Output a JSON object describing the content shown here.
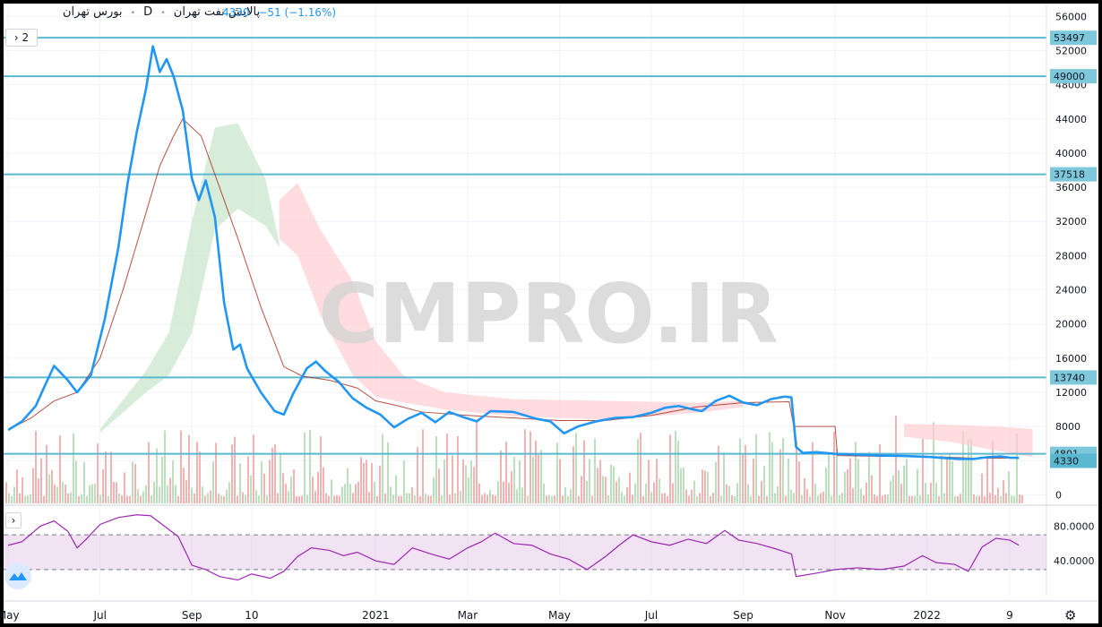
{
  "header": {
    "symbol": "پالایش نفت تهران",
    "interval": "D",
    "exchange": "بورس تهران",
    "last": "4330",
    "change": "−51 (−1.16%)",
    "sep": "•"
  },
  "controls": {
    "collapse_label": "› 2",
    "expand_label": "›",
    "settings_icon": "gear-icon",
    "logo_icon": "tradingview-logo-icon"
  },
  "watermark": "CMPRO.IR",
  "colors": {
    "price": "#2196f3",
    "base": "#a52714",
    "level": "#5ab9d0",
    "rsi": "#9c27b0",
    "cloud_up": "#c8e6c9",
    "cloud_down": "#ffcdd2",
    "vol_up": "#a5d6a7",
    "vol_down": "#ef9a9a"
  },
  "chart_data": {
    "type": "line",
    "price_axis": {
      "ticks": [
        56000,
        52000,
        48000,
        44000,
        40000,
        36000,
        32000,
        28000,
        24000,
        20000,
        16000,
        12000,
        8000,
        4000,
        0
      ],
      "range": [
        -1000,
        57500
      ]
    },
    "time_axis": {
      "labels": [
        {
          "t": 0.0,
          "label": "May"
        },
        {
          "t": 2.0,
          "label": "Jul"
        },
        {
          "t": 4.0,
          "label": "Sep"
        },
        {
          "t": 5.3,
          "label": "10"
        },
        {
          "t": 8.0,
          "label": "2021"
        },
        {
          "t": 10.0,
          "label": "Mar"
        },
        {
          "t": 12.0,
          "label": "May"
        },
        {
          "t": 14.0,
          "label": "Jul"
        },
        {
          "t": 16.0,
          "label": "Sep"
        },
        {
          "t": 18.0,
          "label": "Nov"
        },
        {
          "t": 20.0,
          "label": "2022"
        },
        {
          "t": 21.8,
          "label": "9"
        }
      ],
      "range": [
        -0.1,
        22.6
      ]
    },
    "horizontal_levels": [
      {
        "value": 53497,
        "label": "53497"
      },
      {
        "value": 49000,
        "label": "49000"
      },
      {
        "value": 37518,
        "label": "37518"
      },
      {
        "value": 13740,
        "label": "13740"
      },
      {
        "value": 4801,
        "label": "4801"
      }
    ],
    "current_price": {
      "value": 4330,
      "label": "4330"
    },
    "price_series": {
      "name": "",
      "points": [
        [
          0.0,
          7600
        ],
        [
          0.3,
          8600
        ],
        [
          0.6,
          10400
        ],
        [
          0.8,
          12800
        ],
        [
          1.0,
          15100
        ],
        [
          1.3,
          13400
        ],
        [
          1.5,
          12000
        ],
        [
          1.8,
          14000
        ],
        [
          2.1,
          20500
        ],
        [
          2.4,
          29000
        ],
        [
          2.6,
          36500
        ],
        [
          2.8,
          42500
        ],
        [
          3.0,
          47500
        ],
        [
          3.15,
          52500
        ],
        [
          3.3,
          49500
        ],
        [
          3.45,
          51000
        ],
        [
          3.6,
          49000
        ],
        [
          3.8,
          45000
        ],
        [
          4.0,
          37000
        ],
        [
          4.15,
          34500
        ],
        [
          4.3,
          36800
        ],
        [
          4.5,
          32500
        ],
        [
          4.7,
          22500
        ],
        [
          4.9,
          17000
        ],
        [
          5.05,
          17600
        ],
        [
          5.2,
          14800
        ],
        [
          5.5,
          12000
        ],
        [
          5.8,
          9800
        ],
        [
          6.0,
          9400
        ],
        [
          6.2,
          11800
        ],
        [
          6.5,
          14800
        ],
        [
          6.7,
          15600
        ],
        [
          6.9,
          14500
        ],
        [
          7.2,
          13200
        ],
        [
          7.5,
          11300
        ],
        [
          7.8,
          10200
        ],
        [
          8.1,
          9400
        ],
        [
          8.4,
          7900
        ],
        [
          8.7,
          8900
        ],
        [
          9.0,
          9600
        ],
        [
          9.3,
          8500
        ],
        [
          9.6,
          9700
        ],
        [
          9.9,
          9100
        ],
        [
          10.2,
          8600
        ],
        [
          10.5,
          9800
        ],
        [
          11.0,
          9700
        ],
        [
          11.5,
          8900
        ],
        [
          11.8,
          8600
        ],
        [
          12.1,
          7200
        ],
        [
          12.4,
          8000
        ],
        [
          12.8,
          8600
        ],
        [
          13.2,
          9000
        ],
        [
          13.6,
          9100
        ],
        [
          14.0,
          9600
        ],
        [
          14.3,
          10200
        ],
        [
          14.6,
          10400
        ],
        [
          14.9,
          10000
        ],
        [
          15.1,
          9800
        ],
        [
          15.4,
          11000
        ],
        [
          15.7,
          11600
        ],
        [
          16.0,
          10800
        ],
        [
          16.3,
          10500
        ],
        [
          16.6,
          11200
        ],
        [
          16.9,
          11500
        ],
        [
          17.05,
          11400
        ],
        [
          17.15,
          5600
        ],
        [
          17.3,
          4900
        ],
        [
          17.6,
          5000
        ],
        [
          18.0,
          4800
        ],
        [
          18.5,
          4700
        ],
        [
          19.0,
          4600
        ],
        [
          19.5,
          4550
        ],
        [
          20.0,
          4450
        ],
        [
          20.4,
          4300
        ],
        [
          20.7,
          4200
        ],
        [
          21.0,
          4200
        ],
        [
          21.3,
          4400
        ],
        [
          21.6,
          4500
        ],
        [
          21.8,
          4350
        ],
        [
          22.0,
          4330
        ]
      ]
    },
    "base_line": {
      "name": "",
      "points": [
        [
          0.0,
          7600
        ],
        [
          0.5,
          9000
        ],
        [
          1.0,
          11000
        ],
        [
          1.5,
          12000
        ],
        [
          2.0,
          16000
        ],
        [
          2.5,
          24000
        ],
        [
          3.0,
          33000
        ],
        [
          3.3,
          38500
        ],
        [
          3.6,
          42000
        ],
        [
          3.8,
          44000
        ],
        [
          4.2,
          42000
        ],
        [
          4.6,
          36000
        ],
        [
          5.0,
          30000
        ],
        [
          5.5,
          22000
        ],
        [
          6.0,
          15000
        ],
        [
          6.4,
          13900
        ],
        [
          7.0,
          13400
        ],
        [
          7.6,
          12500
        ],
        [
          8.0,
          11000
        ],
        [
          8.5,
          10400
        ],
        [
          9.0,
          9700
        ],
        [
          10.0,
          9300
        ],
        [
          11.0,
          9000
        ],
        [
          12.0,
          8700
        ],
        [
          13.0,
          8700
        ],
        [
          14.0,
          9300
        ],
        [
          15.0,
          10300
        ],
        [
          16.0,
          10800
        ],
        [
          17.0,
          10900
        ],
        [
          17.1,
          8000
        ],
        [
          18.0,
          8000
        ],
        [
          18.05,
          4600
        ],
        [
          19.0,
          4500
        ],
        [
          20.0,
          4500
        ],
        [
          21.0,
          4300
        ],
        [
          22.0,
          4300
        ]
      ]
    },
    "cloud_bullish": {
      "top": [
        [
          2.0,
          7700
        ],
        [
          3.0,
          14500
        ],
        [
          3.5,
          19000
        ],
        [
          4.0,
          32000
        ],
        [
          4.5,
          43000
        ],
        [
          5.0,
          43500
        ],
        [
          5.6,
          37000
        ],
        [
          5.9,
          29500
        ]
      ],
      "bottom": [
        [
          2.0,
          7300
        ],
        [
          3.0,
          12000
        ],
        [
          3.5,
          14000
        ],
        [
          4.0,
          19000
        ],
        [
          4.5,
          31000
        ],
        [
          5.0,
          33500
        ],
        [
          5.6,
          31500
        ],
        [
          5.9,
          29000
        ]
      ]
    },
    "cloud_bearish": {
      "top": [
        [
          5.9,
          34500
        ],
        [
          6.3,
          36500
        ],
        [
          6.8,
          31000
        ],
        [
          7.5,
          25000
        ],
        [
          8.0,
          18000
        ],
        [
          8.6,
          14000
        ],
        [
          9.5,
          12000
        ],
        [
          11.0,
          11200
        ],
        [
          13.0,
          11000
        ],
        [
          15.0,
          10800
        ],
        [
          16.0,
          11000
        ]
      ],
      "bottom": [
        [
          5.9,
          30000
        ],
        [
          6.3,
          28000
        ],
        [
          6.8,
          21000
        ],
        [
          7.5,
          14000
        ],
        [
          8.0,
          11500
        ],
        [
          8.6,
          10800
        ],
        [
          9.5,
          10000
        ],
        [
          11.0,
          9200
        ],
        [
          13.0,
          8800
        ],
        [
          15.0,
          9600
        ],
        [
          16.0,
          10300
        ]
      ]
    },
    "cloud_bearish_2": {
      "top": [
        [
          19.5,
          8300
        ],
        [
          20.5,
          8200
        ],
        [
          21.5,
          8000
        ],
        [
          22.3,
          7700
        ]
      ],
      "bottom": [
        [
          19.5,
          6800
        ],
        [
          20.5,
          6200
        ],
        [
          21.5,
          5200
        ],
        [
          22.3,
          4400
        ]
      ]
    },
    "rsi": {
      "ticks": [
        80.0,
        40.0
      ],
      "tick_labels": [
        "80.0000",
        "40.0000"
      ],
      "band_upper": 70,
      "band_lower": 30,
      "range": [
        0,
        100
      ],
      "points": [
        [
          0.0,
          58
        ],
        [
          0.3,
          62
        ],
        [
          0.7,
          80
        ],
        [
          1.0,
          86
        ],
        [
          1.3,
          74
        ],
        [
          1.5,
          55
        ],
        [
          1.7,
          65
        ],
        [
          2.0,
          82
        ],
        [
          2.4,
          90
        ],
        [
          2.8,
          93
        ],
        [
          3.1,
          92
        ],
        [
          3.4,
          80
        ],
        [
          3.7,
          68
        ],
        [
          4.0,
          35
        ],
        [
          4.3,
          30
        ],
        [
          4.6,
          22
        ],
        [
          5.0,
          18
        ],
        [
          5.3,
          25
        ],
        [
          5.7,
          20
        ],
        [
          6.0,
          28
        ],
        [
          6.3,
          45
        ],
        [
          6.6,
          55
        ],
        [
          7.0,
          52
        ],
        [
          7.3,
          46
        ],
        [
          7.6,
          50
        ],
        [
          8.0,
          40
        ],
        [
          8.4,
          36
        ],
        [
          8.8,
          55
        ],
        [
          9.2,
          48
        ],
        [
          9.6,
          42
        ],
        [
          10.0,
          55
        ],
        [
          10.3,
          62
        ],
        [
          10.6,
          72
        ],
        [
          11.0,
          60
        ],
        [
          11.4,
          58
        ],
        [
          11.8,
          48
        ],
        [
          12.2,
          42
        ],
        [
          12.6,
          30
        ],
        [
          13.0,
          45
        ],
        [
          13.3,
          58
        ],
        [
          13.6,
          70
        ],
        [
          14.0,
          62
        ],
        [
          14.4,
          58
        ],
        [
          14.8,
          65
        ],
        [
          15.2,
          60
        ],
        [
          15.6,
          75
        ],
        [
          15.9,
          64
        ],
        [
          16.3,
          60
        ],
        [
          16.7,
          54
        ],
        [
          17.05,
          48
        ],
        [
          17.15,
          22
        ],
        [
          17.6,
          26
        ],
        [
          18.0,
          30
        ],
        [
          18.5,
          32
        ],
        [
          19.0,
          30
        ],
        [
          19.5,
          34
        ],
        [
          19.9,
          46
        ],
        [
          20.2,
          38
        ],
        [
          20.6,
          36
        ],
        [
          20.9,
          28
        ],
        [
          21.2,
          56
        ],
        [
          21.5,
          66
        ],
        [
          21.8,
          64
        ],
        [
          22.0,
          58
        ]
      ]
    }
  }
}
